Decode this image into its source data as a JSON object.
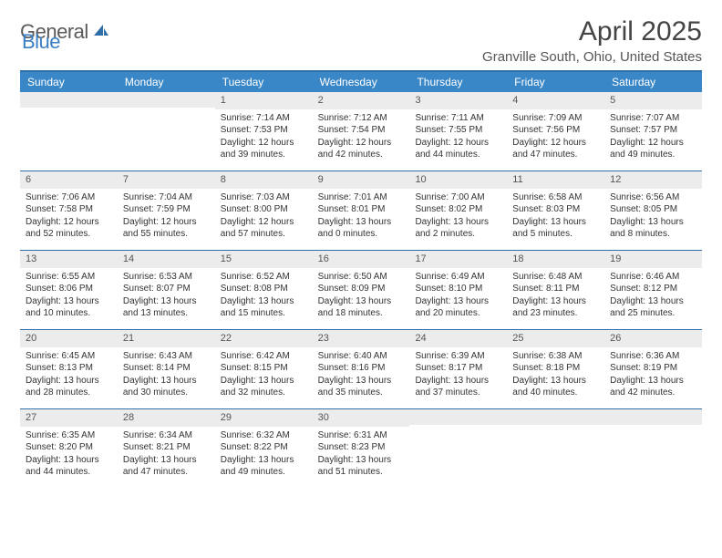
{
  "logo": {
    "part1": "General",
    "part2": "Blue"
  },
  "title": "April 2025",
  "location": "Granville South, Ohio, United States",
  "colors": {
    "header_bg": "#3a87c7",
    "border": "#2f6fa8",
    "daynum_bg": "#ececec",
    "text": "#333333",
    "title_text": "#444444"
  },
  "day_headers": [
    "Sunday",
    "Monday",
    "Tuesday",
    "Wednesday",
    "Thursday",
    "Friday",
    "Saturday"
  ],
  "weeks": [
    [
      null,
      null,
      {
        "n": "1",
        "sr": "Sunrise: 7:14 AM",
        "ss": "Sunset: 7:53 PM",
        "dl": "Daylight: 12 hours and 39 minutes."
      },
      {
        "n": "2",
        "sr": "Sunrise: 7:12 AM",
        "ss": "Sunset: 7:54 PM",
        "dl": "Daylight: 12 hours and 42 minutes."
      },
      {
        "n": "3",
        "sr": "Sunrise: 7:11 AM",
        "ss": "Sunset: 7:55 PM",
        "dl": "Daylight: 12 hours and 44 minutes."
      },
      {
        "n": "4",
        "sr": "Sunrise: 7:09 AM",
        "ss": "Sunset: 7:56 PM",
        "dl": "Daylight: 12 hours and 47 minutes."
      },
      {
        "n": "5",
        "sr": "Sunrise: 7:07 AM",
        "ss": "Sunset: 7:57 PM",
        "dl": "Daylight: 12 hours and 49 minutes."
      }
    ],
    [
      {
        "n": "6",
        "sr": "Sunrise: 7:06 AM",
        "ss": "Sunset: 7:58 PM",
        "dl": "Daylight: 12 hours and 52 minutes."
      },
      {
        "n": "7",
        "sr": "Sunrise: 7:04 AM",
        "ss": "Sunset: 7:59 PM",
        "dl": "Daylight: 12 hours and 55 minutes."
      },
      {
        "n": "8",
        "sr": "Sunrise: 7:03 AM",
        "ss": "Sunset: 8:00 PM",
        "dl": "Daylight: 12 hours and 57 minutes."
      },
      {
        "n": "9",
        "sr": "Sunrise: 7:01 AM",
        "ss": "Sunset: 8:01 PM",
        "dl": "Daylight: 13 hours and 0 minutes."
      },
      {
        "n": "10",
        "sr": "Sunrise: 7:00 AM",
        "ss": "Sunset: 8:02 PM",
        "dl": "Daylight: 13 hours and 2 minutes."
      },
      {
        "n": "11",
        "sr": "Sunrise: 6:58 AM",
        "ss": "Sunset: 8:03 PM",
        "dl": "Daylight: 13 hours and 5 minutes."
      },
      {
        "n": "12",
        "sr": "Sunrise: 6:56 AM",
        "ss": "Sunset: 8:05 PM",
        "dl": "Daylight: 13 hours and 8 minutes."
      }
    ],
    [
      {
        "n": "13",
        "sr": "Sunrise: 6:55 AM",
        "ss": "Sunset: 8:06 PM",
        "dl": "Daylight: 13 hours and 10 minutes."
      },
      {
        "n": "14",
        "sr": "Sunrise: 6:53 AM",
        "ss": "Sunset: 8:07 PM",
        "dl": "Daylight: 13 hours and 13 minutes."
      },
      {
        "n": "15",
        "sr": "Sunrise: 6:52 AM",
        "ss": "Sunset: 8:08 PM",
        "dl": "Daylight: 13 hours and 15 minutes."
      },
      {
        "n": "16",
        "sr": "Sunrise: 6:50 AM",
        "ss": "Sunset: 8:09 PM",
        "dl": "Daylight: 13 hours and 18 minutes."
      },
      {
        "n": "17",
        "sr": "Sunrise: 6:49 AM",
        "ss": "Sunset: 8:10 PM",
        "dl": "Daylight: 13 hours and 20 minutes."
      },
      {
        "n": "18",
        "sr": "Sunrise: 6:48 AM",
        "ss": "Sunset: 8:11 PM",
        "dl": "Daylight: 13 hours and 23 minutes."
      },
      {
        "n": "19",
        "sr": "Sunrise: 6:46 AM",
        "ss": "Sunset: 8:12 PM",
        "dl": "Daylight: 13 hours and 25 minutes."
      }
    ],
    [
      {
        "n": "20",
        "sr": "Sunrise: 6:45 AM",
        "ss": "Sunset: 8:13 PM",
        "dl": "Daylight: 13 hours and 28 minutes."
      },
      {
        "n": "21",
        "sr": "Sunrise: 6:43 AM",
        "ss": "Sunset: 8:14 PM",
        "dl": "Daylight: 13 hours and 30 minutes."
      },
      {
        "n": "22",
        "sr": "Sunrise: 6:42 AM",
        "ss": "Sunset: 8:15 PM",
        "dl": "Daylight: 13 hours and 32 minutes."
      },
      {
        "n": "23",
        "sr": "Sunrise: 6:40 AM",
        "ss": "Sunset: 8:16 PM",
        "dl": "Daylight: 13 hours and 35 minutes."
      },
      {
        "n": "24",
        "sr": "Sunrise: 6:39 AM",
        "ss": "Sunset: 8:17 PM",
        "dl": "Daylight: 13 hours and 37 minutes."
      },
      {
        "n": "25",
        "sr": "Sunrise: 6:38 AM",
        "ss": "Sunset: 8:18 PM",
        "dl": "Daylight: 13 hours and 40 minutes."
      },
      {
        "n": "26",
        "sr": "Sunrise: 6:36 AM",
        "ss": "Sunset: 8:19 PM",
        "dl": "Daylight: 13 hours and 42 minutes."
      }
    ],
    [
      {
        "n": "27",
        "sr": "Sunrise: 6:35 AM",
        "ss": "Sunset: 8:20 PM",
        "dl": "Daylight: 13 hours and 44 minutes."
      },
      {
        "n": "28",
        "sr": "Sunrise: 6:34 AM",
        "ss": "Sunset: 8:21 PM",
        "dl": "Daylight: 13 hours and 47 minutes."
      },
      {
        "n": "29",
        "sr": "Sunrise: 6:32 AM",
        "ss": "Sunset: 8:22 PM",
        "dl": "Daylight: 13 hours and 49 minutes."
      },
      {
        "n": "30",
        "sr": "Sunrise: 6:31 AM",
        "ss": "Sunset: 8:23 PM",
        "dl": "Daylight: 13 hours and 51 minutes."
      },
      null,
      null,
      null
    ]
  ]
}
